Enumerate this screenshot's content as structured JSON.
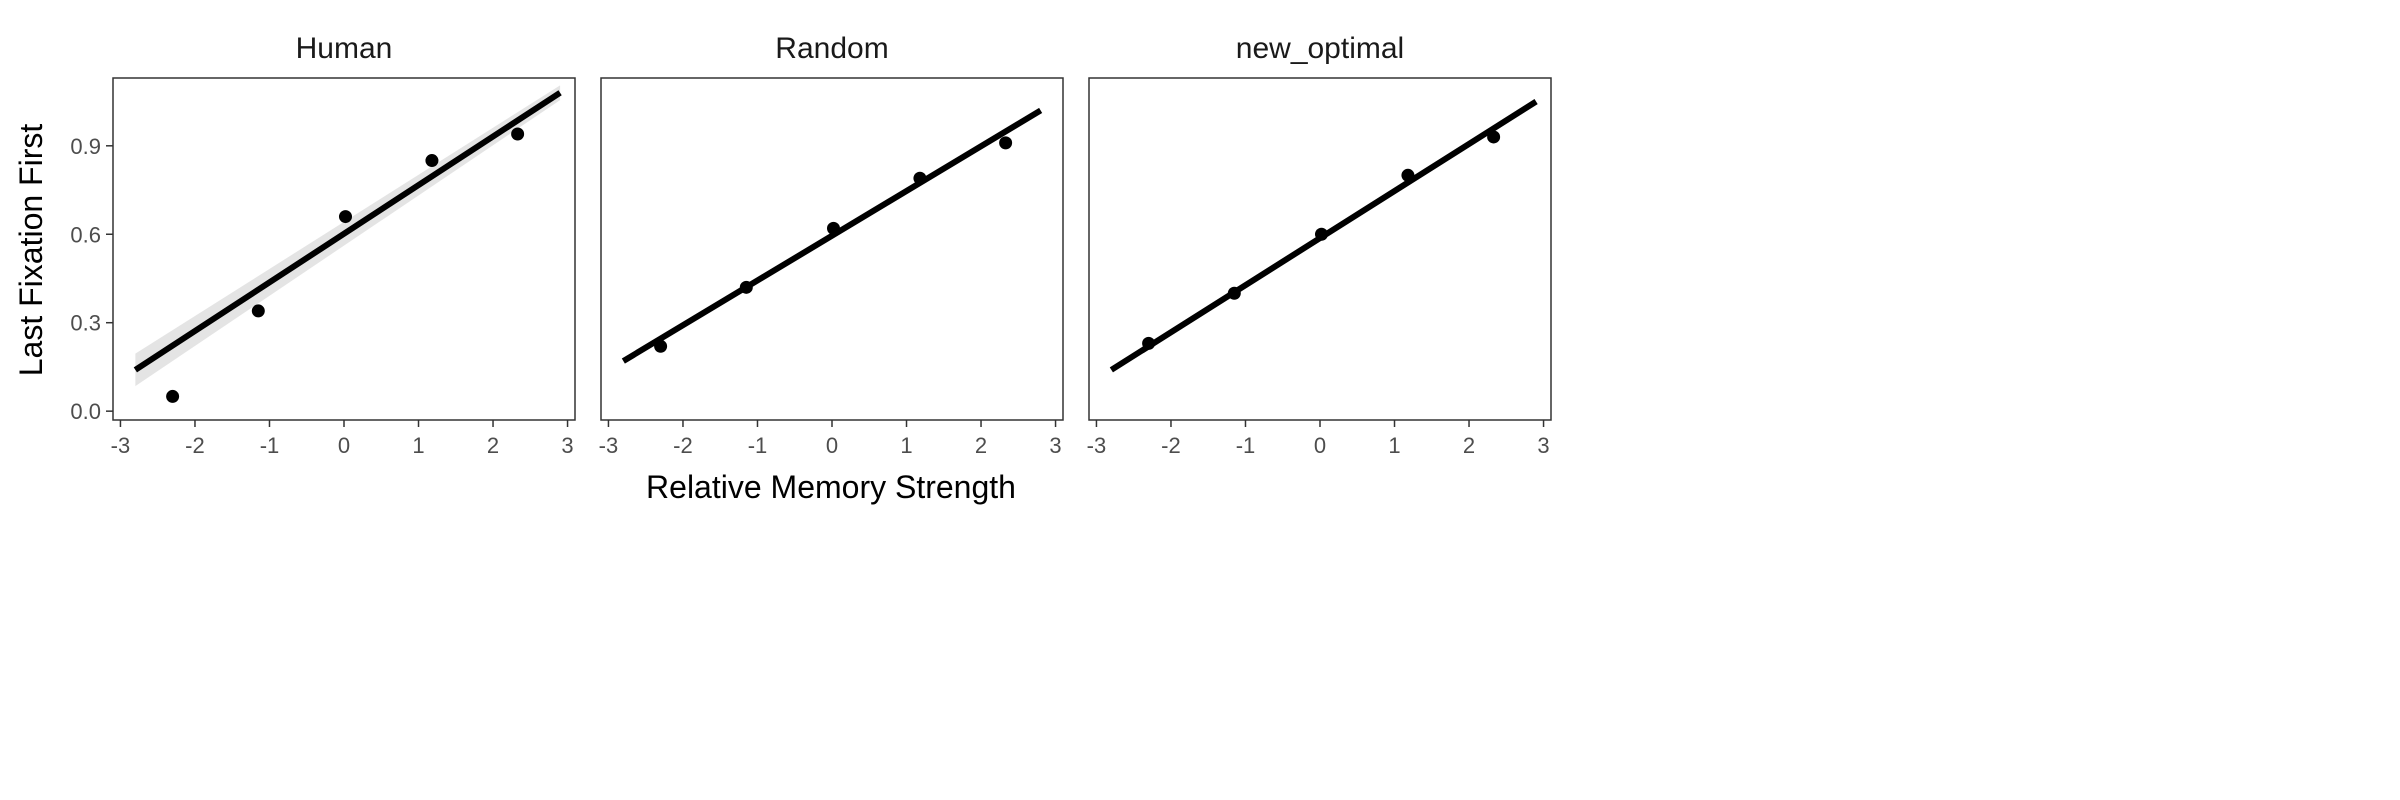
{
  "chart_data": {
    "type": "scatter",
    "xlabel": "Relative Memory Strength",
    "ylabel": "Last Fixation First",
    "xlim": [
      -3.1,
      3.1
    ],
    "ylim": [
      -0.03,
      1.13
    ],
    "x_ticks": [
      -3,
      -2,
      -1,
      0,
      1,
      2,
      3
    ],
    "x_tick_labels": [
      "-3",
      "-2",
      "-1",
      "0",
      "1",
      "2",
      "3"
    ],
    "y_ticks": [
      0.0,
      0.3,
      0.6,
      0.9
    ],
    "y_tick_labels": [
      "0.0",
      "0.3",
      "0.6",
      "0.9"
    ],
    "grid": false,
    "colors": {
      "points": "#000000",
      "fit_line": "#000000",
      "confidence_band": "#d9d9d9",
      "panel_border": "#333333"
    },
    "panels": [
      {
        "title": "Human",
        "points": [
          {
            "x": -2.3,
            "y": 0.05
          },
          {
            "x": -1.15,
            "y": 0.34
          },
          {
            "x": 0.02,
            "y": 0.66
          },
          {
            "x": 1.18,
            "y": 0.85
          },
          {
            "x": 2.33,
            "y": 0.94
          }
        ],
        "fit": {
          "x": [
            -2.8,
            2.9
          ],
          "y": [
            0.14,
            1.08
          ]
        },
        "show_band": true
      },
      {
        "title": "Random",
        "points": [
          {
            "x": -2.3,
            "y": 0.22
          },
          {
            "x": -1.15,
            "y": 0.42
          },
          {
            "x": 0.02,
            "y": 0.62
          },
          {
            "x": 1.18,
            "y": 0.79
          },
          {
            "x": 2.33,
            "y": 0.91
          }
        ],
        "fit": {
          "x": [
            -2.8,
            2.8
          ],
          "y": [
            0.17,
            1.02
          ]
        },
        "show_band": false
      },
      {
        "title": "new_optimal",
        "points": [
          {
            "x": -2.3,
            "y": 0.23
          },
          {
            "x": -1.15,
            "y": 0.4
          },
          {
            "x": 0.02,
            "y": 0.6
          },
          {
            "x": 1.18,
            "y": 0.8
          },
          {
            "x": 2.33,
            "y": 0.93
          }
        ],
        "fit": {
          "x": [
            -2.8,
            2.9
          ],
          "y": [
            0.14,
            1.05
          ]
        },
        "show_band": false
      }
    ]
  }
}
